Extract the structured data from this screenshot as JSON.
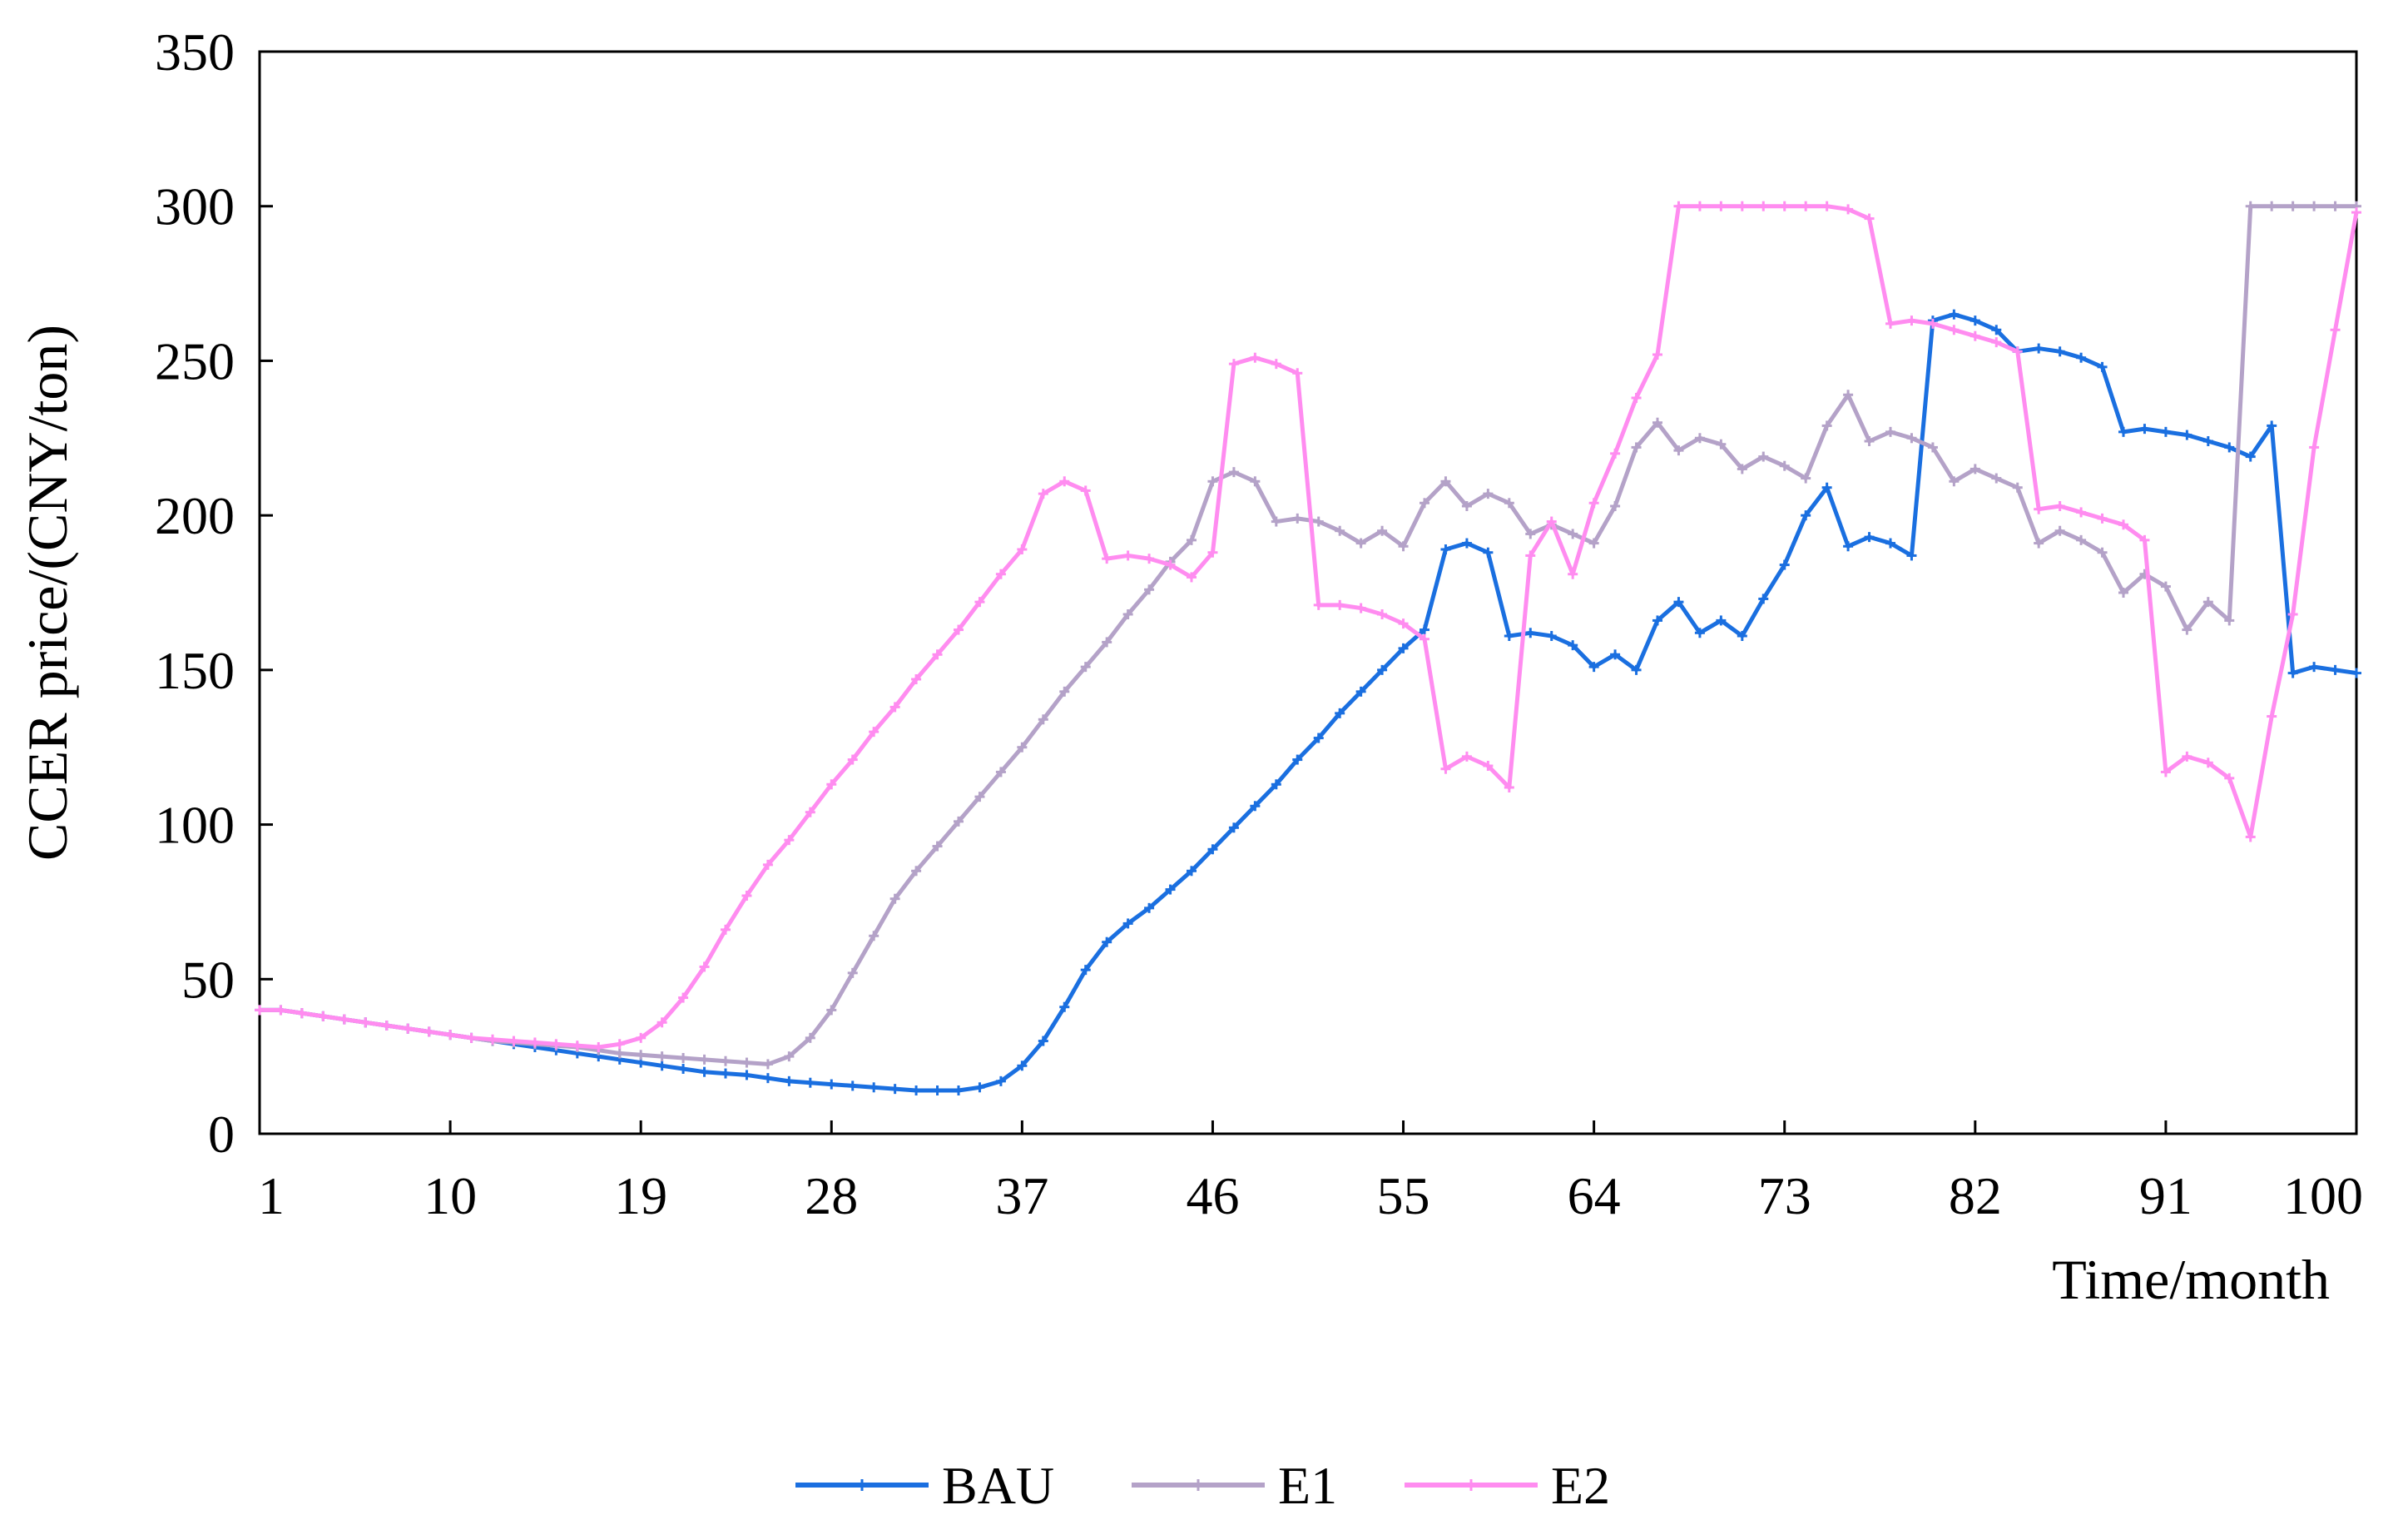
{
  "chart_data": {
    "type": "line",
    "xlabel": "Time/month",
    "ylabel": "CCER price/(CNY/ton)",
    "x_range": [
      1,
      100
    ],
    "ylim": [
      0,
      350
    ],
    "x_ticks": [
      1,
      10,
      19,
      28,
      37,
      46,
      55,
      64,
      73,
      82,
      91,
      100
    ],
    "y_ticks": [
      0,
      50,
      100,
      150,
      200,
      250,
      300,
      350
    ],
    "grid": false,
    "legend_position": "bottom-center",
    "series": [
      {
        "name": "BAU",
        "color": "#1a6fe0",
        "values": [
          40,
          40,
          39,
          38,
          37,
          36,
          35,
          34,
          33,
          32,
          31,
          30,
          29,
          28,
          27,
          26,
          25,
          24,
          23,
          22,
          21,
          20,
          19.5,
          19,
          18,
          17,
          16.5,
          16,
          15.5,
          15,
          14.5,
          14,
          14,
          14,
          15,
          17,
          22,
          30,
          41,
          53,
          62,
          68,
          73,
          79,
          85,
          92,
          99,
          106,
          113,
          121,
          128,
          136,
          143,
          150,
          157,
          163,
          189,
          191,
          188,
          161,
          162,
          161,
          158,
          151,
          155,
          150,
          166,
          172,
          162,
          166,
          161,
          173,
          184,
          200,
          209,
          190,
          193,
          191,
          187,
          263,
          265,
          263,
          260,
          253,
          254,
          253,
          251,
          248,
          227,
          228,
          227,
          226,
          224,
          222,
          219,
          229,
          149,
          151,
          150,
          149
        ]
      },
      {
        "name": "E1",
        "color": "#b4a2c8",
        "values": [
          40,
          40,
          39,
          38,
          37,
          36,
          35,
          34,
          33,
          32,
          31,
          30,
          29.5,
          29,
          28.5,
          28,
          27,
          26,
          25.5,
          25,
          24.5,
          24,
          23.5,
          23,
          22.5,
          25,
          31,
          40,
          52,
          64,
          76,
          85,
          93,
          101,
          109,
          117,
          125,
          134,
          143,
          151,
          159,
          168,
          176,
          185,
          192,
          211,
          214,
          211,
          198,
          199,
          198,
          195,
          191,
          195,
          190,
          204,
          211,
          203,
          207,
          204,
          194,
          197,
          194,
          191,
          203,
          222,
          230,
          221,
          225,
          223,
          215,
          219,
          216,
          212,
          229,
          239,
          224,
          227,
          225,
          222,
          211,
          215,
          212,
          209,
          191,
          195,
          192,
          188,
          175,
          181,
          177,
          163,
          172,
          166,
          300,
          300,
          300,
          300,
          300,
          300
        ]
      },
      {
        "name": "E2",
        "color": "#ff8cf0",
        "values": [
          40,
          40,
          39,
          38,
          37,
          36,
          35,
          34,
          33,
          32,
          31,
          30.5,
          30,
          29.5,
          29,
          28.5,
          28,
          29,
          31,
          36,
          44,
          54,
          66,
          77,
          87,
          95,
          104,
          113,
          121,
          130,
          138,
          147,
          155,
          163,
          172,
          181,
          189,
          207,
          211,
          208,
          186,
          187,
          186,
          184,
          180,
          188,
          249,
          251,
          249,
          246,
          171,
          171,
          170,
          168,
          165,
          160,
          118,
          122,
          119,
          112,
          187,
          198,
          181,
          204,
          220,
          238,
          252,
          300,
          300,
          300,
          300,
          300,
          300,
          300,
          300,
          299,
          296,
          262,
          263,
          262,
          260,
          258,
          256,
          253,
          202,
          203,
          201,
          199,
          197,
          192,
          117,
          122,
          120,
          115,
          96,
          135,
          168,
          222,
          260,
          298
        ]
      }
    ]
  }
}
